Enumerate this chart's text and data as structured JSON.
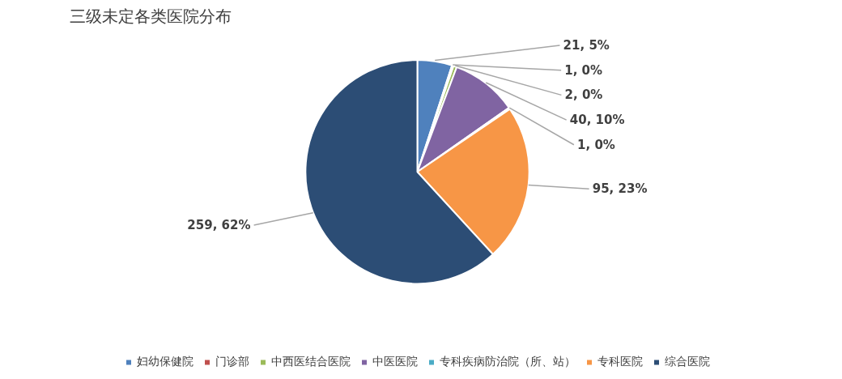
{
  "chart_data": {
    "type": "pie",
    "title": "三级未定各类医院分布",
    "categories": [
      "妇幼保健院",
      "门诊部",
      "中西医结合医院",
      "中医医院",
      "专科疾病防治院（所、站）",
      "专科医院",
      "综合医院"
    ],
    "values": [
      21,
      1,
      2,
      40,
      1,
      95,
      259
    ],
    "colors": [
      "#4f81bd",
      "#c0504d",
      "#9bbb59",
      "#8064a2",
      "#4bacc6",
      "#f79646",
      "#2c4d75"
    ],
    "value_labels": [
      "21, 5%",
      "1, 0%",
      "2, 0%",
      "40, 10%",
      "1, 0%",
      "95, 23%",
      "259, 62%"
    ],
    "legend": "bottom"
  }
}
